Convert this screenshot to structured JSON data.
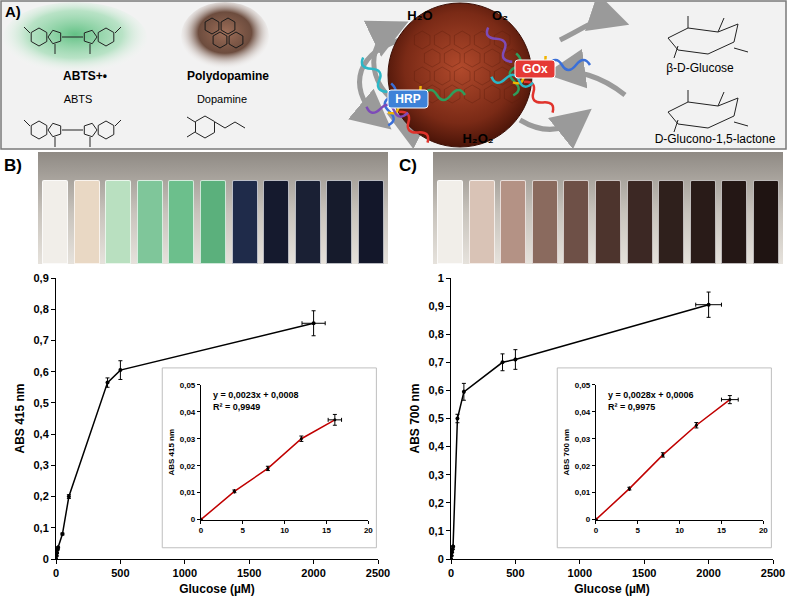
{
  "diagram": {
    "label": "A)",
    "abts_radical": "ABTS+•",
    "polydopamine": "Polydopamine",
    "abts": "ABTS",
    "dopamine": "Dopamine",
    "water": "H₂O",
    "oxygen": "O₂",
    "hrp": "HRP",
    "gox": "GOx",
    "glucose": "β-D-Glucose",
    "peroxide": "H₂O₂",
    "lactone": "D-Glucono-1,5-lactone"
  },
  "chart_data": [
    {
      "type": "line",
      "title": "B)",
      "x_label": "Glucose (µM)",
      "y_label": "ABS 415 nm",
      "x": [
        0,
        4,
        8,
        12,
        16,
        50,
        100,
        400,
        500,
        2000
      ],
      "values": [
        0,
        0.01,
        0.019,
        0.03,
        0.037,
        0.08,
        0.2,
        0.565,
        0.605,
        0.755
      ],
      "error_y": [
        0,
        0.001,
        0.001,
        0.001,
        0.002,
        0.003,
        0.006,
        0.015,
        0.03,
        0.04
      ],
      "error_x": [
        0,
        0,
        0,
        0,
        0,
        0,
        0,
        0,
        0,
        90
      ],
      "color": "#000000",
      "marker": "circle",
      "grid": false,
      "xlim": [
        0,
        2500
      ],
      "xticks": [
        0,
        500,
        1000,
        1500,
        2000,
        2500
      ],
      "ylim": [
        0,
        0.9
      ],
      "yticks": [
        0,
        {
          "value": 0.1,
          "label": "0,1"
        },
        {
          "value": 0.2,
          "label": "0,2"
        },
        {
          "value": 0.3,
          "label": "0,3"
        },
        {
          "value": 0.4,
          "label": "0,4"
        },
        {
          "value": 0.5,
          "label": "0,5"
        },
        {
          "value": 0.6,
          "label": "0,6"
        },
        {
          "value": 0.7,
          "label": "0,7"
        },
        {
          "value": 0.8,
          "label": "0,8"
        },
        {
          "value": 0.9,
          "label": "0,9"
        }
      ]
    },
    {
      "type": "line",
      "y_label": "ABS 415 nm",
      "annotations": [
        "y = 0,0023x + 0,0008",
        "R² = 0,9949"
      ],
      "x": [
        0,
        4,
        8,
        12,
        16
      ],
      "values": [
        0,
        0.0105,
        0.019,
        0.03,
        0.037
      ],
      "error_y": [
        0,
        0.0005,
        0.0008,
        0.001,
        0.002
      ],
      "error_x": [
        0,
        0,
        0,
        0,
        0.8
      ],
      "color": "#c00000",
      "marker": "circle",
      "grid": false,
      "xlim": [
        0,
        20
      ],
      "xticks": [
        0,
        5,
        10,
        15,
        20
      ],
      "ylim": [
        0,
        0.05
      ],
      "yticks": [
        0,
        {
          "value": 0.01,
          "label": "0,01"
        },
        {
          "value": 0.02,
          "label": "0,02"
        },
        {
          "value": 0.03,
          "label": "0,03"
        },
        {
          "value": 0.04,
          "label": "0,04"
        },
        {
          "value": 0.05,
          "label": "0,05"
        }
      ]
    },
    {
      "type": "line",
      "title": "C)",
      "x_label": "Glucose (µM)",
      "y_label": "ABS 700 nm",
      "x": [
        0,
        4,
        8,
        12,
        16,
        50,
        100,
        400,
        500,
        2000
      ],
      "values": [
        0,
        0.012,
        0.024,
        0.035,
        0.0445,
        0.5,
        0.595,
        0.7,
        0.71,
        0.905
      ],
      "error_y": [
        0,
        0.001,
        0.001,
        0.001,
        0.002,
        0.015,
        0.03,
        0.03,
        0.035,
        0.045
      ],
      "error_x": [
        0,
        0,
        0,
        0,
        0,
        0,
        0,
        0,
        0,
        100
      ],
      "color": "#000000",
      "marker": "circle",
      "grid": false,
      "xlim": [
        0,
        2500
      ],
      "xticks": [
        0,
        500,
        1000,
        1500,
        2000,
        2500
      ],
      "ylim": [
        0,
        1
      ],
      "yticks": [
        0,
        {
          "value": 0.1,
          "label": "0,1"
        },
        {
          "value": 0.2,
          "label": "0,2"
        },
        {
          "value": 0.3,
          "label": "0,3"
        },
        {
          "value": 0.4,
          "label": "0,4"
        },
        {
          "value": 0.5,
          "label": "0,5"
        },
        {
          "value": 0.6,
          "label": "0,6"
        },
        {
          "value": 0.7,
          "label": "0,7"
        },
        {
          "value": 0.8,
          "label": "0,8"
        },
        {
          "value": 0.9,
          "label": "0,9"
        },
        1
      ]
    },
    {
      "type": "line",
      "y_label": "ABS 700 nm",
      "annotations": [
        "y = 0,0028x + 0,0006",
        "R² = 0,9975"
      ],
      "x": [
        0,
        4,
        8,
        12,
        16
      ],
      "values": [
        0,
        0.0115,
        0.024,
        0.035,
        0.0445
      ],
      "error_y": [
        0,
        0.0005,
        0.0008,
        0.001,
        0.0015
      ],
      "error_x": [
        0,
        0,
        0,
        0,
        1
      ],
      "color": "#c00000",
      "marker": "circle",
      "grid": false,
      "xlim": [
        0,
        20
      ],
      "xticks": [
        0,
        5,
        10,
        15,
        20
      ],
      "ylim": [
        0,
        0.05
      ],
      "yticks": [
        0,
        {
          "value": 0.01,
          "label": "0,01"
        },
        {
          "value": 0.02,
          "label": "0,02"
        },
        {
          "value": 0.03,
          "label": "0,03"
        },
        {
          "value": 0.04,
          "label": "0,04"
        },
        {
          "value": 0.05,
          "label": "0,05"
        }
      ]
    }
  ]
}
